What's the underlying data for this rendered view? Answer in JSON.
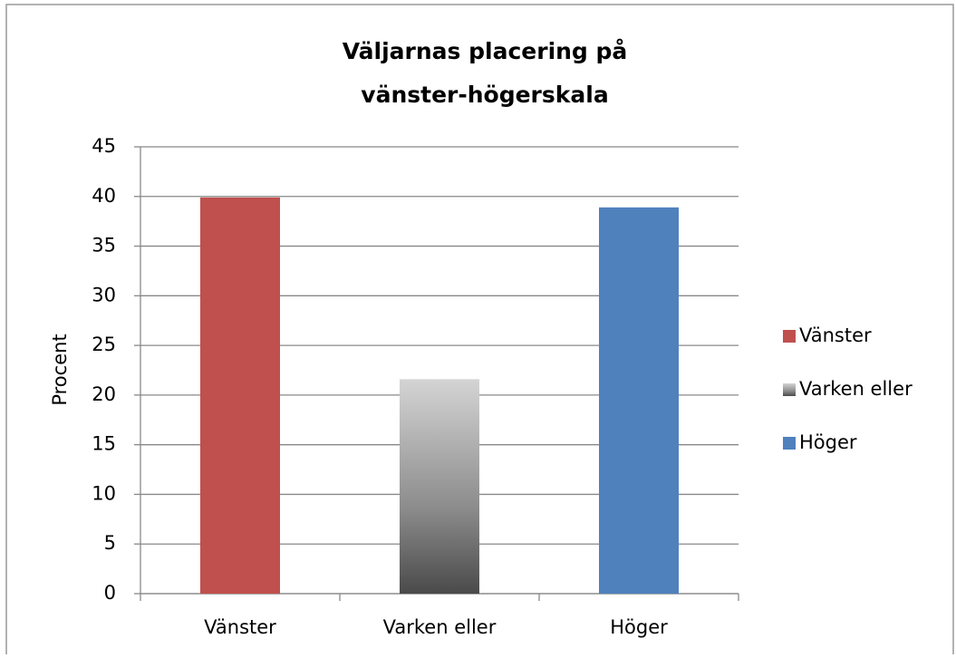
{
  "chart_data": {
    "type": "bar",
    "title": [
      "Väljarnas placering på",
      "vänster-högerskala"
    ],
    "y_label": "Procent",
    "categories": [
      "Vänster",
      "Varken eller",
      "Höger"
    ],
    "values": [
      39.9,
      21.6,
      38.9
    ],
    "colors": [
      "#c0504d",
      "#8c8c8c",
      "#4f81bd"
    ],
    "gradient": [
      false,
      true,
      false
    ],
    "ylim": [
      0,
      45
    ],
    "yticks": [
      0,
      5,
      10,
      15,
      20,
      25,
      30,
      35,
      40,
      45
    ],
    "grid": true,
    "legend": "right"
  }
}
